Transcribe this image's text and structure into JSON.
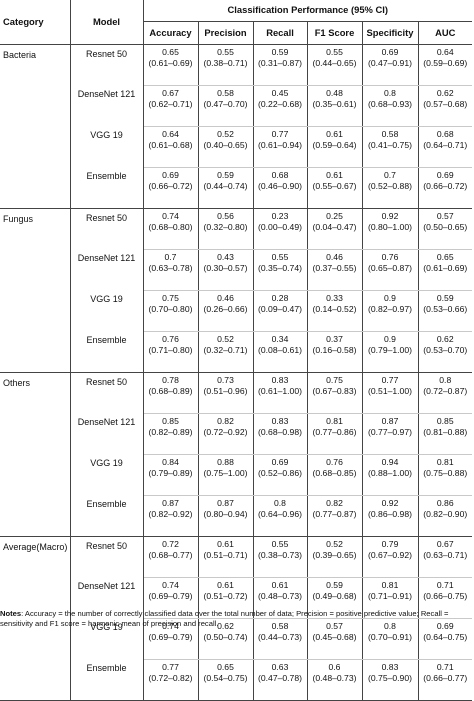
{
  "headers": {
    "category": "Category",
    "model": "Model",
    "group": "Classification Performance (95% CI)",
    "metrics": [
      "Accuracy",
      "Precision",
      "Recall",
      "F1 Score",
      "Specificity",
      "AUC"
    ]
  },
  "categories": [
    {
      "name": "Bacteria",
      "rows": [
        {
          "model": "Resnet 50",
          "values": [
            [
              "0.65",
              "(0.61–0.69)"
            ],
            [
              "0.55",
              "(0.38–0.71)"
            ],
            [
              "0.59",
              "(0.31–0.87)"
            ],
            [
              "0.55",
              "(0.44–0.65)"
            ],
            [
              "0.69",
              "(0.47–0.91)"
            ],
            [
              "0.64",
              "(0.59–0.69)"
            ]
          ]
        },
        {
          "model": "DenseNet 121",
          "values": [
            [
              "0.67",
              "(0.62–0.71)"
            ],
            [
              "0.58",
              "(0.47–0.70)"
            ],
            [
              "0.45",
              "(0.22–0.68)"
            ],
            [
              "0.48",
              "(0.35–0.61)"
            ],
            [
              "0.8",
              "(0.68–0.93)"
            ],
            [
              "0.62",
              "(0.57–0.68)"
            ]
          ]
        },
        {
          "model": "VGG 19",
          "values": [
            [
              "0.64",
              "(0.61–0.68)"
            ],
            [
              "0.52",
              "(0.40–0.65)"
            ],
            [
              "0.77",
              "(0.61–0.94)"
            ],
            [
              "0.61",
              "(0.59–0.64)"
            ],
            [
              "0.58",
              "(0.41–0.75)"
            ],
            [
              "0.68",
              "(0.64–0.71)"
            ]
          ]
        },
        {
          "model": "Ensemble",
          "values": [
            [
              "0.69",
              "(0.66–0.72)"
            ],
            [
              "0.59",
              "(0.44–0.74)"
            ],
            [
              "0.68",
              "(0.46–0.90)"
            ],
            [
              "0.61",
              "(0.55–0.67)"
            ],
            [
              "0.7",
              "(0.52–0.88)"
            ],
            [
              "0.69",
              "(0.66–0.72)"
            ]
          ]
        }
      ]
    },
    {
      "name": "Fungus",
      "rows": [
        {
          "model": "Resnet 50",
          "values": [
            [
              "0.74",
              "(0.68–0.80)"
            ],
            [
              "0.56",
              "(0.32–0.80)"
            ],
            [
              "0.23",
              "(0.00–0.49)"
            ],
            [
              "0.25",
              "(0.04–0.47)"
            ],
            [
              "0.92",
              "(0.80–1.00)"
            ],
            [
              "0.57",
              "(0.50–0.65)"
            ]
          ]
        },
        {
          "model": "DenseNet 121",
          "values": [
            [
              "0.7",
              "(0.63–0.78)"
            ],
            [
              "0.43",
              "(0.30–0.57)"
            ],
            [
              "0.55",
              "(0.35–0.74)"
            ],
            [
              "0.46",
              "(0.37–0.55)"
            ],
            [
              "0.76",
              "(0.65–0.87)"
            ],
            [
              "0.65",
              "(0.61–0.69)"
            ]
          ]
        },
        {
          "model": "VGG 19",
          "values": [
            [
              "0.75",
              "(0.70–0.80)"
            ],
            [
              "0.46",
              "(0.26–0.66)"
            ],
            [
              "0.28",
              "(0.09–0.47)"
            ],
            [
              "0.33",
              "(0.14–0.52)"
            ],
            [
              "0.9",
              "(0.82–0.97)"
            ],
            [
              "0.59",
              "(0.53–0.66)"
            ]
          ]
        },
        {
          "model": "Ensemble",
          "values": [
            [
              "0.76",
              "(0.71–0.80)"
            ],
            [
              "0.52",
              "(0.32–0.71)"
            ],
            [
              "0.34",
              "(0.08–0.61)"
            ],
            [
              "0.37",
              "(0.16–0.58)"
            ],
            [
              "0.9",
              "(0.79–1.00)"
            ],
            [
              "0.62",
              "(0.53–0.70)"
            ]
          ]
        }
      ]
    },
    {
      "name": "Others",
      "rows": [
        {
          "model": "Resnet 50",
          "values": [
            [
              "0.78",
              "(0.68–0.89)"
            ],
            [
              "0.73",
              "(0.51–0.96)"
            ],
            [
              "0.83",
              "(0.61–1.00)"
            ],
            [
              "0.75",
              "(0.67–0.83)"
            ],
            [
              "0.77",
              "(0.51–1.00)"
            ],
            [
              "0.8",
              "(0.72–0.87)"
            ]
          ]
        },
        {
          "model": "DenseNet 121",
          "values": [
            [
              "0.85",
              "(0.82–0.89)"
            ],
            [
              "0.82",
              "(0.72–0.92)"
            ],
            [
              "0.83",
              "(0.68–0.98)"
            ],
            [
              "0.81",
              "(0.77–0.86)"
            ],
            [
              "0.87",
              "(0.77–0.97)"
            ],
            [
              "0.85",
              "(0.81–0.88)"
            ]
          ]
        },
        {
          "model": "VGG 19",
          "values": [
            [
              "0.84",
              "(0.79–0.89)"
            ],
            [
              "0.88",
              "(0.75–1.00)"
            ],
            [
              "0.69",
              "(0.52–0.86)"
            ],
            [
              "0.76",
              "(0.68–0.85)"
            ],
            [
              "0.94",
              "(0.88–1.00)"
            ],
            [
              "0.81",
              "(0.75–0.88)"
            ]
          ]
        },
        {
          "model": "Ensemble",
          "values": [
            [
              "0.87",
              "(0.82–0.92)"
            ],
            [
              "0.87",
              "(0.80–0.94)"
            ],
            [
              "0.8",
              "(0.64–0.96)"
            ],
            [
              "0.82",
              "(0.77–0.87)"
            ],
            [
              "0.92",
              "(0.86–0.98)"
            ],
            [
              "0.86",
              "(0.82–0.90)"
            ]
          ]
        }
      ]
    },
    {
      "name": "Average(Macro)",
      "rows": [
        {
          "model": "Resnet 50",
          "values": [
            [
              "0.72",
              "(0.68–0.77)"
            ],
            [
              "0.61",
              "(0.51–0.71)"
            ],
            [
              "0.55",
              "(0.38–0.73)"
            ],
            [
              "0.52",
              "(0.39–0.65)"
            ],
            [
              "0.79",
              "(0.67–0.92)"
            ],
            [
              "0.67",
              "(0.63–0.71)"
            ]
          ]
        },
        {
          "model": "DenseNet 121",
          "values": [
            [
              "0.74",
              "(0.69–0.79)"
            ],
            [
              "0.61",
              "(0.51–0.72)"
            ],
            [
              "0.61",
              "(0.48–0.73)"
            ],
            [
              "0.59",
              "(0.49–0.68)"
            ],
            [
              "0.81",
              "(0.71–0.91)"
            ],
            [
              "0.71",
              "(0.66–0.75)"
            ]
          ]
        },
        {
          "model": "VGG 19",
          "values": [
            [
              "0.74",
              "(0.69–0.79)"
            ],
            [
              "0.62",
              "(0.50–0.74)"
            ],
            [
              "0.58",
              "(0.44–0.73)"
            ],
            [
              "0.57",
              "(0.45–0.68)"
            ],
            [
              "0.8",
              "(0.70–0.91)"
            ],
            [
              "0.69",
              "(0.64–0.75)"
            ]
          ]
        },
        {
          "model": "Ensemble",
          "values": [
            [
              "0.77",
              "(0.72–0.82)"
            ],
            [
              "0.65",
              "(0.54–0.75)"
            ],
            [
              "0.63",
              "(0.47–0.78)"
            ],
            [
              "0.6",
              "(0.48–0.73)"
            ],
            [
              "0.83",
              "(0.75–0.90)"
            ],
            [
              "0.71",
              "(0.66–0.77)"
            ]
          ]
        }
      ]
    }
  ],
  "notes": {
    "label": "Notes",
    "text": ": Accuracy = the number of correctly classified data over the total number of data; Precision = positive predictive value; Recall = sensitivity and F1 score = harmonic mean of precision and recall."
  }
}
